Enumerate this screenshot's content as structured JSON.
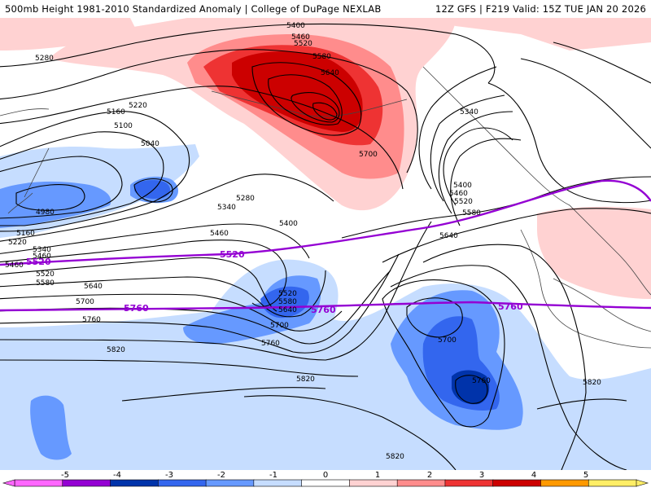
{
  "header": {
    "title_left": "500mb Height 1981-2010 Standardized Anomaly | College of DuPage NEXLAB",
    "title_right": "12Z GFS | F219 Valid: 15Z TUE JAN 20 2026"
  },
  "map": {
    "contour_labels": [
      "5400",
      "5460",
      "5520",
      "5580",
      "5640",
      "5700",
      "5280",
      "5220",
      "5160",
      "5100",
      "5040",
      "4980",
      "5340",
      "5400",
      "5460",
      "5520",
      "5580",
      "5640",
      "5700",
      "5760",
      "5820",
      "5820",
      "5820",
      "5820",
      "5340",
      "5400",
      "5460",
      "5520",
      "5580",
      "5640",
      "5460",
      "5520",
      "5580",
      "5640",
      "5700",
      "5760",
      "5280",
      "5220",
      "5160",
      "5460",
      "5340",
      "5700",
      "5760"
    ],
    "reference_lines": [
      {
        "label": "5520",
        "color": "#9400d3"
      },
      {
        "label": "5760",
        "color": "#9400d3"
      }
    ]
  },
  "colorbar": {
    "ticks": [
      "-5",
      "-4",
      "-3",
      "-2",
      "-1",
      "0",
      "1",
      "2",
      "3",
      "4",
      "5"
    ],
    "colors": [
      "#ff66ff",
      "#9400d3",
      "#0033aa",
      "#3366ee",
      "#6699ff",
      "#c6ddff",
      "#ffffff",
      "#ffd2d2",
      "#ff8c8c",
      "#ee3333",
      "#cc0000",
      "#ff9900",
      "#ffee66"
    ]
  }
}
